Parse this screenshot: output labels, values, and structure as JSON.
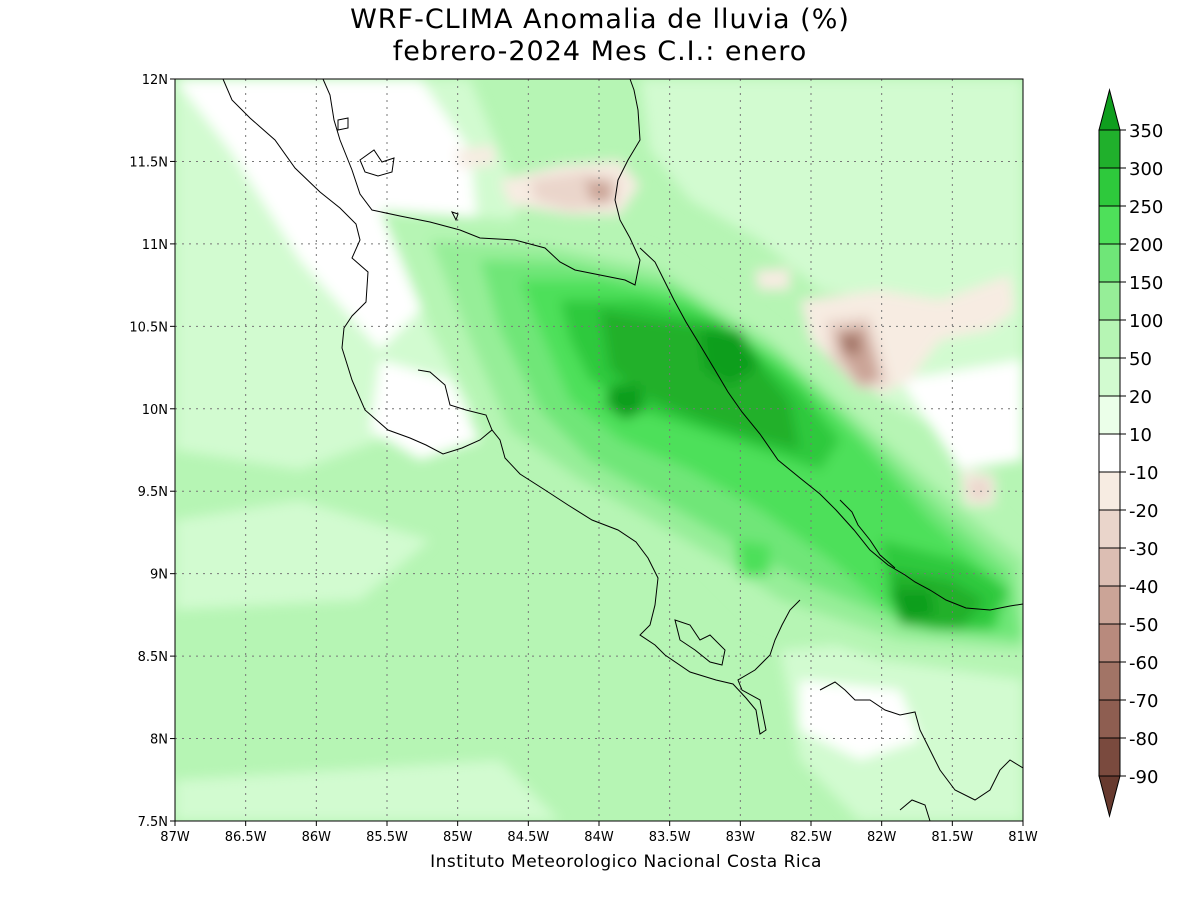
{
  "title_line1": "WRF-CLIMA Anomalia de lluvia (%)",
  "title_line2": "febrero-2024 Mes C.I.: enero",
  "credit": "Instituto Meteorologico Nacional Costa Rica",
  "lat_ticks": [
    "12N",
    "11.5N",
    "11N",
    "10.5N",
    "10N",
    "9.5N",
    "9N",
    "8.5N",
    "8N",
    "7.5N"
  ],
  "lon_ticks": [
    "87W",
    "86.5W",
    "86W",
    "85.5W",
    "85W",
    "84.5W",
    "84W",
    "83.5W",
    "83W",
    "82.5W",
    "82W",
    "81.5W",
    "81W"
  ],
  "colorbar": {
    "labels": [
      "350",
      "300",
      "250",
      "200",
      "150",
      "100",
      "50",
      "20",
      "10",
      "-10",
      "-20",
      "-30",
      "-40",
      "-50",
      "-60",
      "-70",
      "-80",
      "-90"
    ],
    "colors": [
      "#0f9e1e",
      "#20b02c",
      "#2ec93c",
      "#4ee05a",
      "#6fe678",
      "#96ee98",
      "#b6f5b4",
      "#d2fbd0",
      "#ebffe9",
      "#ffffff",
      "#f7ece2",
      "#ead5cb",
      "#dcbeb3",
      "#cba497",
      "#b88a7d",
      "#a27466",
      "#8e5e51",
      "#7a4a3e",
      "#673a2f"
    ]
  },
  "field_colors": {
    "c20": "#d2fbd0",
    "c50": "#b6f5b4",
    "c100": "#96ee98",
    "c150": "#6fe678",
    "c200": "#4ee05a",
    "c250": "#2ec93c",
    "c300": "#20b02c",
    "c350": "#0f9e1e",
    "n10": "#f7ece2",
    "n20": "#ead5cb",
    "n40": "#cba497",
    "n60": "#a27466"
  }
}
